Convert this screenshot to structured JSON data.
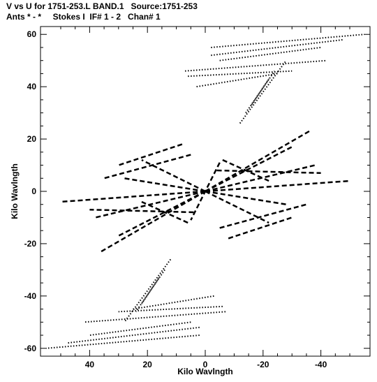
{
  "header": {
    "line1": "V vs U for 1751-253.L BAND.1   Source:1751-253",
    "line2": "Ants * - *     Stokes I  IF# 1 - 2   Chan# 1"
  },
  "chart_data": {
    "type": "scatter",
    "xlabel": "Kilo Wavlngth",
    "ylabel": "Kilo Wavlngth",
    "xlim": [
      57,
      -57
    ],
    "ylim": [
      -63,
      63
    ],
    "x_reversed": true,
    "grid": false,
    "x_ticks": [
      40,
      20,
      0,
      -20,
      -40
    ],
    "y_ticks": [
      60,
      40,
      20,
      0,
      -20,
      -40,
      -60
    ],
    "x_tick_labels": [
      "40",
      "20",
      "0",
      "-20",
      "-40"
    ],
    "y_tick_labels": [
      "60",
      "40",
      "20",
      "0",
      "-20",
      "-40",
      "-60"
    ],
    "marker_color": "#000000",
    "tracks": [
      {
        "region": "IF2 upper",
        "u0": -2,
        "v0": 55,
        "u1": -55,
        "v1": 60
      },
      {
        "region": "IF2 upper",
        "u0": -2,
        "v0": 52,
        "u1": -48,
        "v1": 58
      },
      {
        "region": "IF2 upper",
        "u0": -5,
        "v0": 50,
        "u1": -40,
        "v1": 55
      },
      {
        "region": "IF2 upper",
        "u0": 7,
        "v0": 46,
        "u1": -42,
        "v1": 50
      },
      {
        "region": "IF2 upper",
        "u0": 6,
        "v0": 44,
        "u1": -30,
        "v1": 46
      },
      {
        "region": "IF2 upper",
        "u0": 3,
        "v0": 40,
        "u1": -25,
        "v1": 45
      },
      {
        "region": "IF2 upper",
        "u0": -12,
        "v0": 26,
        "u1": -28,
        "v1": 50
      },
      {
        "region": "IF2 upper",
        "u0": -14,
        "v0": 30,
        "u1": -24,
        "v1": 46
      },
      {
        "region": "IF2 upper",
        "u0": -16,
        "v0": 33,
        "u1": -22,
        "v1": 43
      },
      {
        "region": "IF2 lower",
        "u0": 2,
        "v0": -55,
        "u1": 55,
        "v1": -60
      },
      {
        "region": "IF2 lower",
        "u0": 2,
        "v0": -52,
        "u1": 48,
        "v1": -58
      },
      {
        "region": "IF2 lower",
        "u0": 5,
        "v0": -50,
        "u1": 40,
        "v1": -55
      },
      {
        "region": "IF2 lower",
        "u0": -7,
        "v0": -46,
        "u1": 42,
        "v1": -50
      },
      {
        "region": "IF2 lower",
        "u0": -6,
        "v0": -44,
        "u1": 30,
        "v1": -46
      },
      {
        "region": "IF2 lower",
        "u0": -3,
        "v0": -40,
        "u1": 25,
        "v1": -45
      },
      {
        "region": "IF2 lower",
        "u0": 12,
        "v0": -26,
        "u1": 28,
        "v1": -50
      },
      {
        "region": "IF2 lower",
        "u0": 14,
        "v0": -30,
        "u1": 24,
        "v1": -46
      },
      {
        "region": "IF2 lower",
        "u0": 16,
        "v0": -33,
        "u1": 22,
        "v1": -43
      },
      {
        "region": "IF1 center",
        "u0": 0,
        "v0": 0,
        "u1": -36,
        "v1": 23
      },
      {
        "region": "IF1 center",
        "u0": 0,
        "v0": 0,
        "u1": 36,
        "v1": -23
      },
      {
        "region": "IF1 center",
        "u0": 0,
        "v0": 0,
        "u1": -30,
        "v1": 17
      },
      {
        "region": "IF1 center",
        "u0": 0,
        "v0": 0,
        "u1": 30,
        "v1": -17
      },
      {
        "region": "IF1 center",
        "u0": 0,
        "v0": 0,
        "u1": -38,
        "v1": 10
      },
      {
        "region": "IF1 center",
        "u0": 0,
        "v0": 0,
        "u1": 38,
        "v1": -10
      },
      {
        "region": "IF1 center",
        "u0": 0,
        "v0": 0,
        "u1": -50,
        "v1": 4
      },
      {
        "region": "IF1 center",
        "u0": 0,
        "v0": 0,
        "u1": 50,
        "v1": -4
      },
      {
        "region": "IF1 center",
        "u0": 0,
        "v0": 0,
        "u1": -28,
        "v1": -5
      },
      {
        "region": "IF1 center",
        "u0": 0,
        "v0": 0,
        "u1": 28,
        "v1": 5
      },
      {
        "region": "IF1 center",
        "u0": 0,
        "v0": 0,
        "u1": -22,
        "v1": -12
      },
      {
        "region": "IF1 center",
        "u0": 0,
        "v0": 0,
        "u1": 22,
        "v1": 12
      },
      {
        "region": "IF1 center",
        "u0": -5,
        "v0": 11,
        "u1": 5,
        "v1": -11
      },
      {
        "region": "IF1 center",
        "u0": -4,
        "v0": 8,
        "u1": -40,
        "v1": 7
      },
      {
        "region": "IF1 center",
        "u0": 4,
        "v0": -8,
        "u1": 40,
        "v1": -7
      },
      {
        "region": "IF1 center",
        "u0": -6,
        "v0": 12,
        "u1": -22,
        "v1": 4
      },
      {
        "region": "IF1 center",
        "u0": 6,
        "v0": -12,
        "u1": 22,
        "v1": -4
      },
      {
        "region": "IF1 center",
        "u0": 5,
        "v0": 14,
        "u1": 35,
        "v1": 5
      },
      {
        "region": "IF1 center",
        "u0": -5,
        "v0": -14,
        "u1": -35,
        "v1": -5
      },
      {
        "region": "IF1 center",
        "u0": 8,
        "v0": 18,
        "u1": 30,
        "v1": 10
      },
      {
        "region": "IF1 center",
        "u0": -8,
        "v0": -18,
        "u1": -30,
        "v1": -10
      }
    ]
  }
}
